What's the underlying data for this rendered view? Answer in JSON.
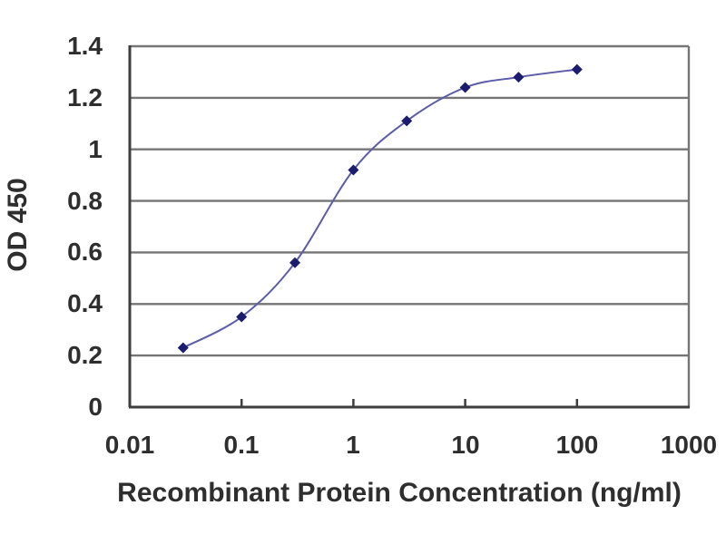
{
  "chart_data": {
    "type": "line",
    "title": "",
    "xlabel": "Recombinant Protein Concentration (ng/ml)",
    "ylabel": "OD 450",
    "x_scale": "log",
    "y_scale": "linear",
    "xlim": [
      0.01,
      1000
    ],
    "ylim": [
      0,
      1.4
    ],
    "x": [
      0.03,
      0.1,
      0.3,
      1,
      3,
      10,
      30,
      100
    ],
    "y": [
      0.23,
      0.35,
      0.56,
      0.92,
      1.11,
      1.24,
      1.28,
      1.31
    ],
    "x_ticks": {
      "values": [
        0.01,
        0.1,
        1,
        10,
        100,
        1000
      ],
      "labels": [
        "0.01",
        "0.1",
        "1",
        "10",
        "100",
        "1000"
      ]
    },
    "y_ticks": {
      "values": [
        0,
        0.2,
        0.4,
        0.6,
        0.8,
        1,
        1.2,
        1.4
      ],
      "labels": [
        "0",
        "0.2",
        "0.4",
        "0.6",
        "0.8",
        "1",
        "1.2",
        "1.4"
      ]
    },
    "grid": "horizontal",
    "legend": "none",
    "marker": "diamond",
    "line_style": "smooth"
  },
  "colors": {
    "line": "#5c5caa",
    "marker": "#1c1c6e",
    "grid": "#757575",
    "axis": "#3d3d3d",
    "text": "#2e2e2e",
    "background": "#ffffff"
  }
}
